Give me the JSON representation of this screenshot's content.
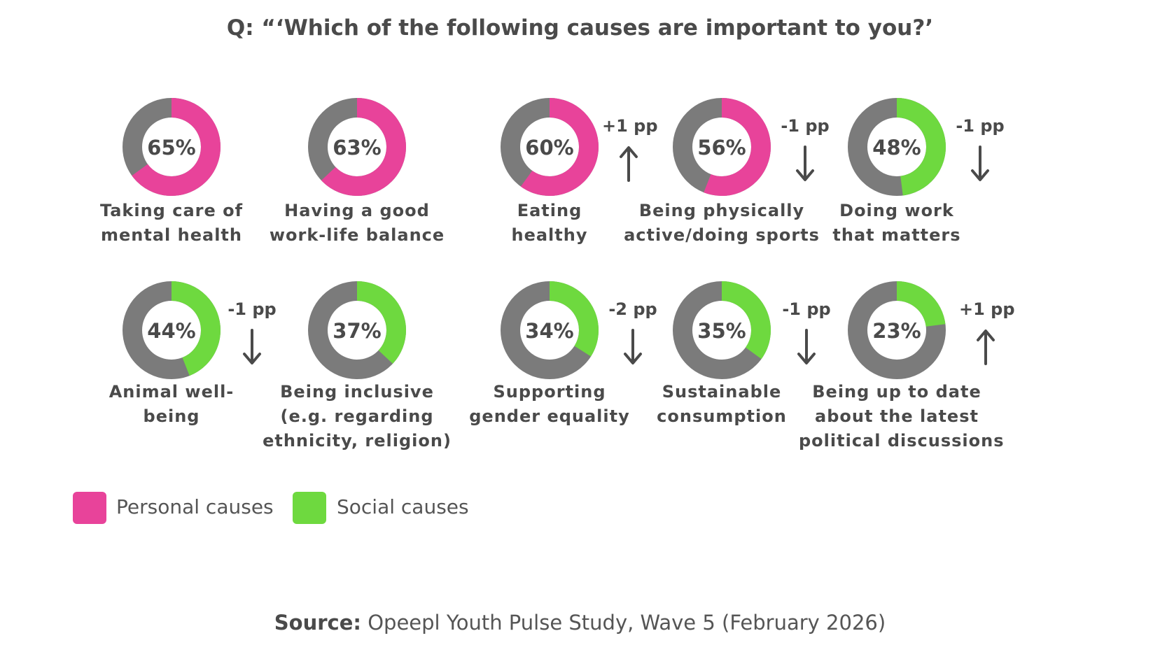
{
  "colors": {
    "personal": "#e8439a",
    "social": "#6ed93f",
    "track": "#7b7b7b",
    "text": "#4a4a4a"
  },
  "title": "Q: “‘Which of the following causes are important to you?’",
  "legend": {
    "personal": "Personal causes",
    "social": "Social causes"
  },
  "source": {
    "label": "Source:",
    "text": "Opeepl Youth Pulse Study, Wave 5 (February 2026)"
  },
  "chart_data": {
    "type": "pie",
    "title": "Q: “‘Which of the following causes are important to you?’",
    "items": [
      {
        "label_lines": [
          "Taking care of",
          "mental health"
        ],
        "value": 65,
        "value_label": "65%",
        "category": "personal",
        "change_label": "",
        "direction": ""
      },
      {
        "label_lines": [
          "Having a good",
          "work-life balance"
        ],
        "value": 63,
        "value_label": "63%",
        "category": "personal",
        "change_label": "",
        "direction": ""
      },
      {
        "label_lines": [
          "Eating",
          "healthy"
        ],
        "value": 60,
        "value_label": "60%",
        "category": "personal",
        "change_label": "+1 pp",
        "direction": "up"
      },
      {
        "label_lines": [
          "Being physically",
          "active/doing sports"
        ],
        "value": 56,
        "value_label": "56%",
        "category": "personal",
        "change_label": "-1 pp",
        "direction": "down"
      },
      {
        "label_lines": [
          "Doing work",
          "that matters"
        ],
        "value": 48,
        "value_label": "48%",
        "category": "social",
        "change_label": "-1 pp",
        "direction": "down"
      },
      {
        "label_lines": [
          "Animal well-",
          "being"
        ],
        "value": 44,
        "value_label": "44%",
        "category": "social",
        "change_label": "-1 pp",
        "direction": "down"
      },
      {
        "label_lines": [
          "Being inclusive",
          "(e.g. regarding",
          "ethnicity, religion)"
        ],
        "value": 37,
        "value_label": "37%",
        "category": "social",
        "change_label": "",
        "direction": ""
      },
      {
        "label_lines": [
          "Supporting",
          "gender equality"
        ],
        "value": 34,
        "value_label": "34%",
        "category": "social",
        "change_label": "-2 pp",
        "direction": "down"
      },
      {
        "label_lines": [
          "Sustainable",
          "consumption"
        ],
        "value": 35,
        "value_label": "35%",
        "category": "social",
        "change_label": "-1 pp",
        "direction": "down"
      },
      {
        "label_lines": [
          "Being up to date",
          "about the latest",
          "political discussions"
        ],
        "value": 23,
        "value_label": "23%",
        "category": "social",
        "change_label": "+1 pp",
        "direction": "up"
      }
    ],
    "legend": [
      "Personal causes",
      "Social causes"
    ]
  }
}
